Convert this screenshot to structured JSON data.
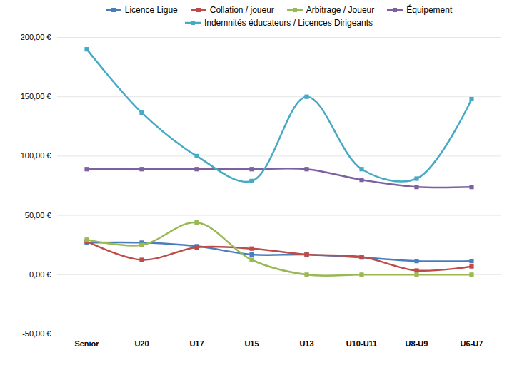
{
  "chart_data": {
    "type": "line",
    "categories": [
      "Senior",
      "U20",
      "U17",
      "U15",
      "U13",
      "U10-U11",
      "U8-U9",
      "U6-U7"
    ],
    "series": [
      {
        "name": "Licence Ligue",
        "color": "#4a7ebb",
        "marker": "square",
        "values": [
          27,
          27,
          24,
          17,
          17,
          14.5,
          11.5,
          11.5
        ]
      },
      {
        "name": "Collation / joueur",
        "color": "#be4b48",
        "marker": "square",
        "values": [
          28,
          12.5,
          23,
          22,
          17,
          15,
          3.5,
          7
        ]
      },
      {
        "name": "Arbitrage / Joueur",
        "color": "#98b954",
        "marker": "square",
        "values": [
          29.5,
          25,
          44,
          12.5,
          0,
          0,
          0,
          0
        ]
      },
      {
        "name": "Équipement",
        "color": "#7d60a0",
        "marker": "square",
        "values": [
          89,
          89,
          89,
          89,
          89,
          80,
          74,
          74
        ]
      },
      {
        "name": "Indemnités éducateurs / Licences Dirigeants",
        "color": "#46aac5",
        "marker": "square",
        "values": [
          190,
          136.5,
          100,
          79,
          150,
          89,
          81,
          148
        ]
      }
    ],
    "ylim": [
      -50,
      200
    ],
    "yticks": [
      {
        "value": -50,
        "label": "-50,00 €"
      },
      {
        "value": 0,
        "label": "0,00 €"
      },
      {
        "value": 50,
        "label": "50,00 €"
      },
      {
        "value": 100,
        "label": "100,00 €"
      },
      {
        "value": 150,
        "label": "150,00 €"
      },
      {
        "value": 200,
        "label": "200,00 €"
      }
    ],
    "grid": true,
    "legend": "top"
  }
}
